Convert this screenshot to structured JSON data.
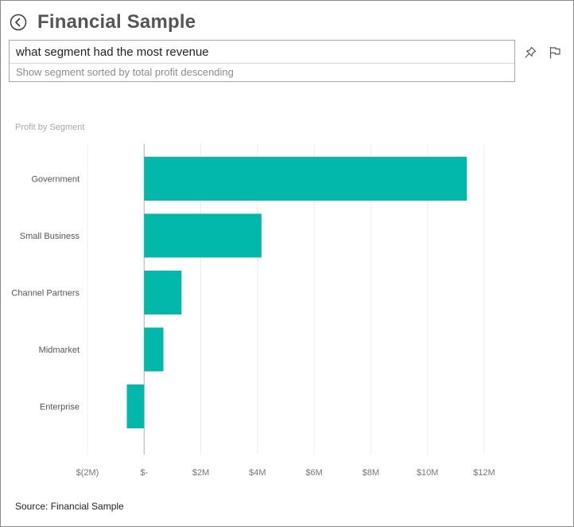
{
  "header": {
    "title": "Financial Sample",
    "back_icon": "back-arrow-circle-icon"
  },
  "qa": {
    "question": "what segment had the most revenue",
    "suggestion": "Show segment sorted by total profit descending"
  },
  "toolbar": {
    "pin_icon": "pin-icon",
    "flag_icon": "flag-icon"
  },
  "chart_data": {
    "type": "bar",
    "orientation": "horizontal",
    "title": "Profit by Segment",
    "categories": [
      "Government",
      "Small Business",
      "Channel Partners",
      "Midmarket",
      "Enterprise"
    ],
    "values": [
      11.39,
      4.14,
      1.32,
      0.68,
      -0.61
    ],
    "value_unit": "M",
    "xlim": [
      -2,
      12
    ],
    "x_ticks": [
      -2,
      0,
      2,
      4,
      6,
      8,
      10,
      12
    ],
    "x_tick_labels": [
      "$(2M)",
      "$-",
      "$2M",
      "$4M",
      "$6M",
      "$8M",
      "$10M",
      "$12M"
    ],
    "grid": true,
    "bar_color": "#01b8aa",
    "grid_color": "#ececec",
    "zero_line_color": "#b0b0b0"
  },
  "footer": {
    "source": "Source: Financial Sample"
  }
}
